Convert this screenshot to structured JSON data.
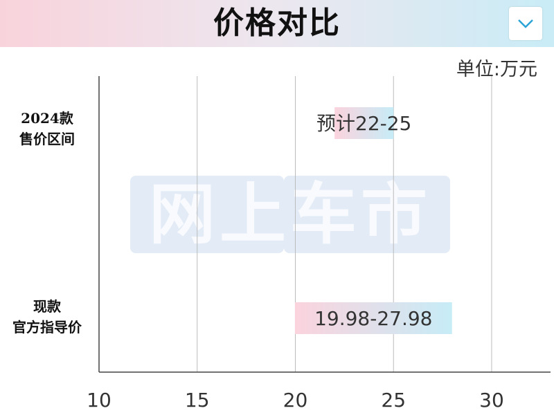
{
  "header": {
    "title": "价格对比"
  },
  "watermark_text": "网上车市",
  "chart_data": {
    "type": "bar",
    "orientation": "horizontal-range",
    "unit_label": "单位:万元",
    "categories": [
      {
        "line1": "2024款",
        "line2": "售价区间"
      },
      {
        "line1": "现款",
        "line2": "官方指导价"
      }
    ],
    "series": [
      {
        "start": 22,
        "end": 25,
        "label": "预计22-25"
      },
      {
        "start": 19.98,
        "end": 27.98,
        "label": "19.98-27.98"
      }
    ],
    "xlim": [
      10,
      33
    ],
    "ticks": [
      10,
      15,
      20,
      25,
      30
    ],
    "tick_labels": [
      "10",
      "15",
      "20",
      "25",
      "30"
    ],
    "grid": "vertical",
    "colors": {
      "bar_start": "#fbd3dd",
      "bar_end": "#c6ecf7",
      "grid": "#bbbbbb",
      "axis": "#444444"
    }
  }
}
